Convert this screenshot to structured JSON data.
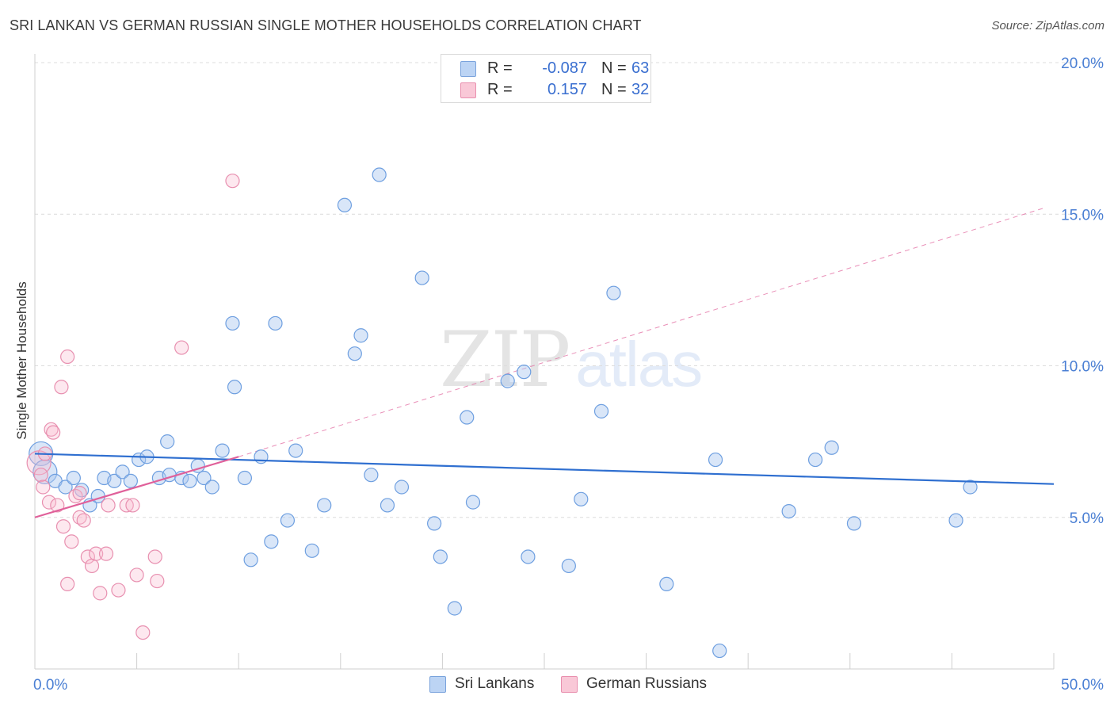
{
  "title": "SRI LANKAN VS GERMAN RUSSIAN SINGLE MOTHER HOUSEHOLDS CORRELATION CHART",
  "source": "Source: ZipAtlas.com",
  "watermark": {
    "part1": "ZIP",
    "part2": "atlas"
  },
  "legend": {
    "rows": [
      {
        "r_label": "R =",
        "r_value": "-0.087",
        "n_label": "N =",
        "n_value": "63",
        "swatch_fill": "#bcd4f4",
        "swatch_stroke": "#7aa3dc"
      },
      {
        "r_label": "R =",
        "r_value": "0.157",
        "n_label": "N =",
        "n_value": "32",
        "swatch_fill": "#f9c8d7",
        "swatch_stroke": "#e98fae"
      }
    ]
  },
  "bottom_legend": [
    {
      "label": "Sri Lankans",
      "swatch_fill": "#bcd4f4",
      "swatch_stroke": "#7aa3dc"
    },
    {
      "label": "German Russians",
      "swatch_fill": "#f9c8d7",
      "swatch_stroke": "#e98fae"
    }
  ],
  "colors": {
    "blue_fill": "rgba(170,200,240,0.45)",
    "blue_stroke": "#6e9fe0",
    "blue_line": "#2f6fd0",
    "pink_fill": "rgba(248,190,210,0.35)",
    "pink_stroke": "#e890b0",
    "pink_line": "#e0609a",
    "tick_label": "#4a7fd4",
    "grid": "#dcdcdc"
  },
  "chart_data": {
    "type": "scatter",
    "title": "SRI LANKAN VS GERMAN RUSSIAN SINGLE MOTHER HOUSEHOLDS CORRELATION CHART",
    "xlabel": "",
    "ylabel": "Single Mother Households",
    "xlim": [
      0,
      50
    ],
    "ylim": [
      0,
      20
    ],
    "x_tick_labels": [
      {
        "value": 0,
        "label": "0.0%"
      },
      {
        "value": 50,
        "label": "50.0%"
      }
    ],
    "y_tick_labels": [
      {
        "value": 5,
        "label": "5.0%"
      },
      {
        "value": 10,
        "label": "10.0%"
      },
      {
        "value": 15,
        "label": "15.0%"
      },
      {
        "value": 20,
        "label": "20.0%"
      }
    ],
    "grid": true,
    "series": [
      {
        "name": "Sri Lankans",
        "r": -0.087,
        "n": 63,
        "trend": {
          "x": [
            0,
            50
          ],
          "y": [
            7.1,
            6.1
          ]
        },
        "points": [
          {
            "x": 0.3,
            "y": 7.1,
            "big": true
          },
          {
            "x": 0.5,
            "y": 6.5,
            "big": true
          },
          {
            "x": 1.0,
            "y": 6.2
          },
          {
            "x": 1.5,
            "y": 6.0
          },
          {
            "x": 1.9,
            "y": 6.3
          },
          {
            "x": 2.3,
            "y": 5.9
          },
          {
            "x": 2.7,
            "y": 5.4
          },
          {
            "x": 3.1,
            "y": 5.7
          },
          {
            "x": 3.4,
            "y": 6.3
          },
          {
            "x": 3.9,
            "y": 6.2
          },
          {
            "x": 4.3,
            "y": 6.5
          },
          {
            "x": 4.7,
            "y": 6.2
          },
          {
            "x": 5.1,
            "y": 6.9
          },
          {
            "x": 5.5,
            "y": 7.0
          },
          {
            "x": 6.1,
            "y": 6.3
          },
          {
            "x": 6.5,
            "y": 7.5
          },
          {
            "x": 6.6,
            "y": 6.4
          },
          {
            "x": 7.2,
            "y": 6.3
          },
          {
            "x": 7.6,
            "y": 6.2
          },
          {
            "x": 8.0,
            "y": 6.7
          },
          {
            "x": 8.3,
            "y": 6.3
          },
          {
            "x": 8.7,
            "y": 6.0
          },
          {
            "x": 9.2,
            "y": 7.2
          },
          {
            "x": 9.7,
            "y": 11.4
          },
          {
            "x": 9.8,
            "y": 9.3
          },
          {
            "x": 10.3,
            "y": 6.3
          },
          {
            "x": 10.6,
            "y": 3.6
          },
          {
            "x": 11.1,
            "y": 7.0
          },
          {
            "x": 11.6,
            "y": 4.2
          },
          {
            "x": 11.8,
            "y": 11.4
          },
          {
            "x": 12.4,
            "y": 4.9
          },
          {
            "x": 12.8,
            "y": 7.2
          },
          {
            "x": 13.6,
            "y": 3.9
          },
          {
            "x": 14.2,
            "y": 5.4
          },
          {
            "x": 15.2,
            "y": 15.3
          },
          {
            "x": 15.7,
            "y": 10.4
          },
          {
            "x": 16.0,
            "y": 11.0
          },
          {
            "x": 16.5,
            "y": 6.4
          },
          {
            "x": 16.9,
            "y": 16.3
          },
          {
            "x": 17.3,
            "y": 5.4
          },
          {
            "x": 18.0,
            "y": 6.0
          },
          {
            "x": 19.0,
            "y": 12.9
          },
          {
            "x": 19.6,
            "y": 4.8
          },
          {
            "x": 19.9,
            "y": 3.7
          },
          {
            "x": 20.6,
            "y": 2.0
          },
          {
            "x": 21.2,
            "y": 8.3
          },
          {
            "x": 21.5,
            "y": 5.5
          },
          {
            "x": 23.2,
            "y": 9.5
          },
          {
            "x": 24.0,
            "y": 9.8
          },
          {
            "x": 24.2,
            "y": 3.7
          },
          {
            "x": 26.2,
            "y": 3.4
          },
          {
            "x": 26.8,
            "y": 5.6
          },
          {
            "x": 27.8,
            "y": 8.5
          },
          {
            "x": 28.4,
            "y": 12.4
          },
          {
            "x": 31.0,
            "y": 2.8
          },
          {
            "x": 33.4,
            "y": 6.9
          },
          {
            "x": 33.6,
            "y": 0.6
          },
          {
            "x": 37.0,
            "y": 5.2
          },
          {
            "x": 38.3,
            "y": 6.9
          },
          {
            "x": 39.1,
            "y": 7.3
          },
          {
            "x": 40.2,
            "y": 4.8
          },
          {
            "x": 45.2,
            "y": 4.9
          },
          {
            "x": 45.9,
            "y": 6.0
          }
        ]
      },
      {
        "name": "German Russians",
        "r": 0.157,
        "n": 32,
        "trend_solid": {
          "x": [
            0,
            10
          ],
          "y": [
            5.0,
            7.0
          ]
        },
        "trend_dashed": {
          "x": [
            10,
            49.5
          ],
          "y": [
            7.0,
            15.2
          ]
        },
        "points": [
          {
            "x": 0.2,
            "y": 6.8,
            "big": true
          },
          {
            "x": 0.3,
            "y": 6.4
          },
          {
            "x": 0.5,
            "y": 7.1
          },
          {
            "x": 0.4,
            "y": 6.0
          },
          {
            "x": 0.7,
            "y": 5.5
          },
          {
            "x": 0.8,
            "y": 7.9
          },
          {
            "x": 1.1,
            "y": 5.4
          },
          {
            "x": 0.9,
            "y": 7.8
          },
          {
            "x": 1.3,
            "y": 9.3
          },
          {
            "x": 1.4,
            "y": 4.7
          },
          {
            "x": 1.6,
            "y": 2.8
          },
          {
            "x": 1.6,
            "y": 10.3
          },
          {
            "x": 1.8,
            "y": 4.2
          },
          {
            "x": 2.0,
            "y": 5.7
          },
          {
            "x": 2.2,
            "y": 5.8
          },
          {
            "x": 2.2,
            "y": 5.0
          },
          {
            "x": 2.4,
            "y": 4.9
          },
          {
            "x": 2.6,
            "y": 3.7
          },
          {
            "x": 2.8,
            "y": 3.4
          },
          {
            "x": 3.0,
            "y": 3.8
          },
          {
            "x": 3.2,
            "y": 2.5
          },
          {
            "x": 3.5,
            "y": 3.8
          },
          {
            "x": 3.6,
            "y": 5.4
          },
          {
            "x": 4.1,
            "y": 2.6
          },
          {
            "x": 4.5,
            "y": 5.4
          },
          {
            "x": 4.8,
            "y": 5.4
          },
          {
            "x": 5.0,
            "y": 3.1
          },
          {
            "x": 5.3,
            "y": 1.2
          },
          {
            "x": 5.9,
            "y": 3.7
          },
          {
            "x": 6.0,
            "y": 2.9
          },
          {
            "x": 7.2,
            "y": 10.6
          },
          {
            "x": 9.7,
            "y": 16.1
          }
        ]
      }
    ]
  }
}
